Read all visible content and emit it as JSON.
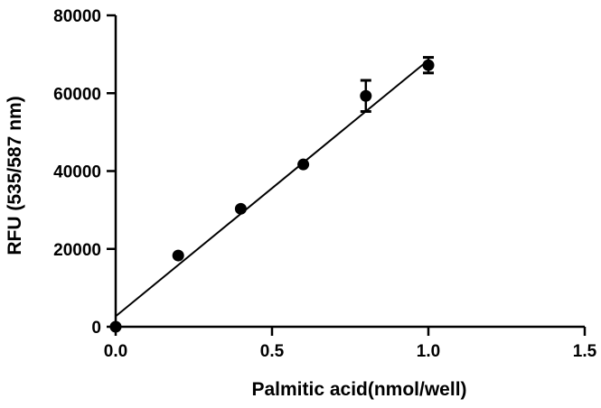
{
  "chart_data": {
    "type": "scatter",
    "title": "",
    "xlabel": "Palmitic acid(nmol/well)",
    "ylabel": "RFU (535/587 nm)",
    "xlim": [
      0,
      1.5
    ],
    "ylim": [
      0,
      80000
    ],
    "x_ticks": [
      0,
      0.5,
      1.0,
      1.5
    ],
    "x_tick_labels": [
      "0.0",
      "0.5",
      "1.0",
      "1.5"
    ],
    "y_ticks": [
      0,
      20000,
      40000,
      60000,
      80000
    ],
    "y_tick_labels": [
      "0",
      "20000",
      "40000",
      "60000",
      "80000"
    ],
    "grid": false,
    "legend": "none",
    "points": [
      {
        "x": 0.0,
        "y": 0,
        "err": 0
      },
      {
        "x": 0.2,
        "y": 18300,
        "err": 0
      },
      {
        "x": 0.4,
        "y": 30300,
        "err": 0
      },
      {
        "x": 0.6,
        "y": 41700,
        "err": 0
      },
      {
        "x": 0.8,
        "y": 59300,
        "err": 4000
      },
      {
        "x": 1.0,
        "y": 67200,
        "err": 2000
      }
    ],
    "fit_line": {
      "x": [
        0.0,
        1.0
      ],
      "y": [
        2700,
        68500
      ]
    },
    "marker_color": "#000000",
    "line_color": "#000000"
  }
}
